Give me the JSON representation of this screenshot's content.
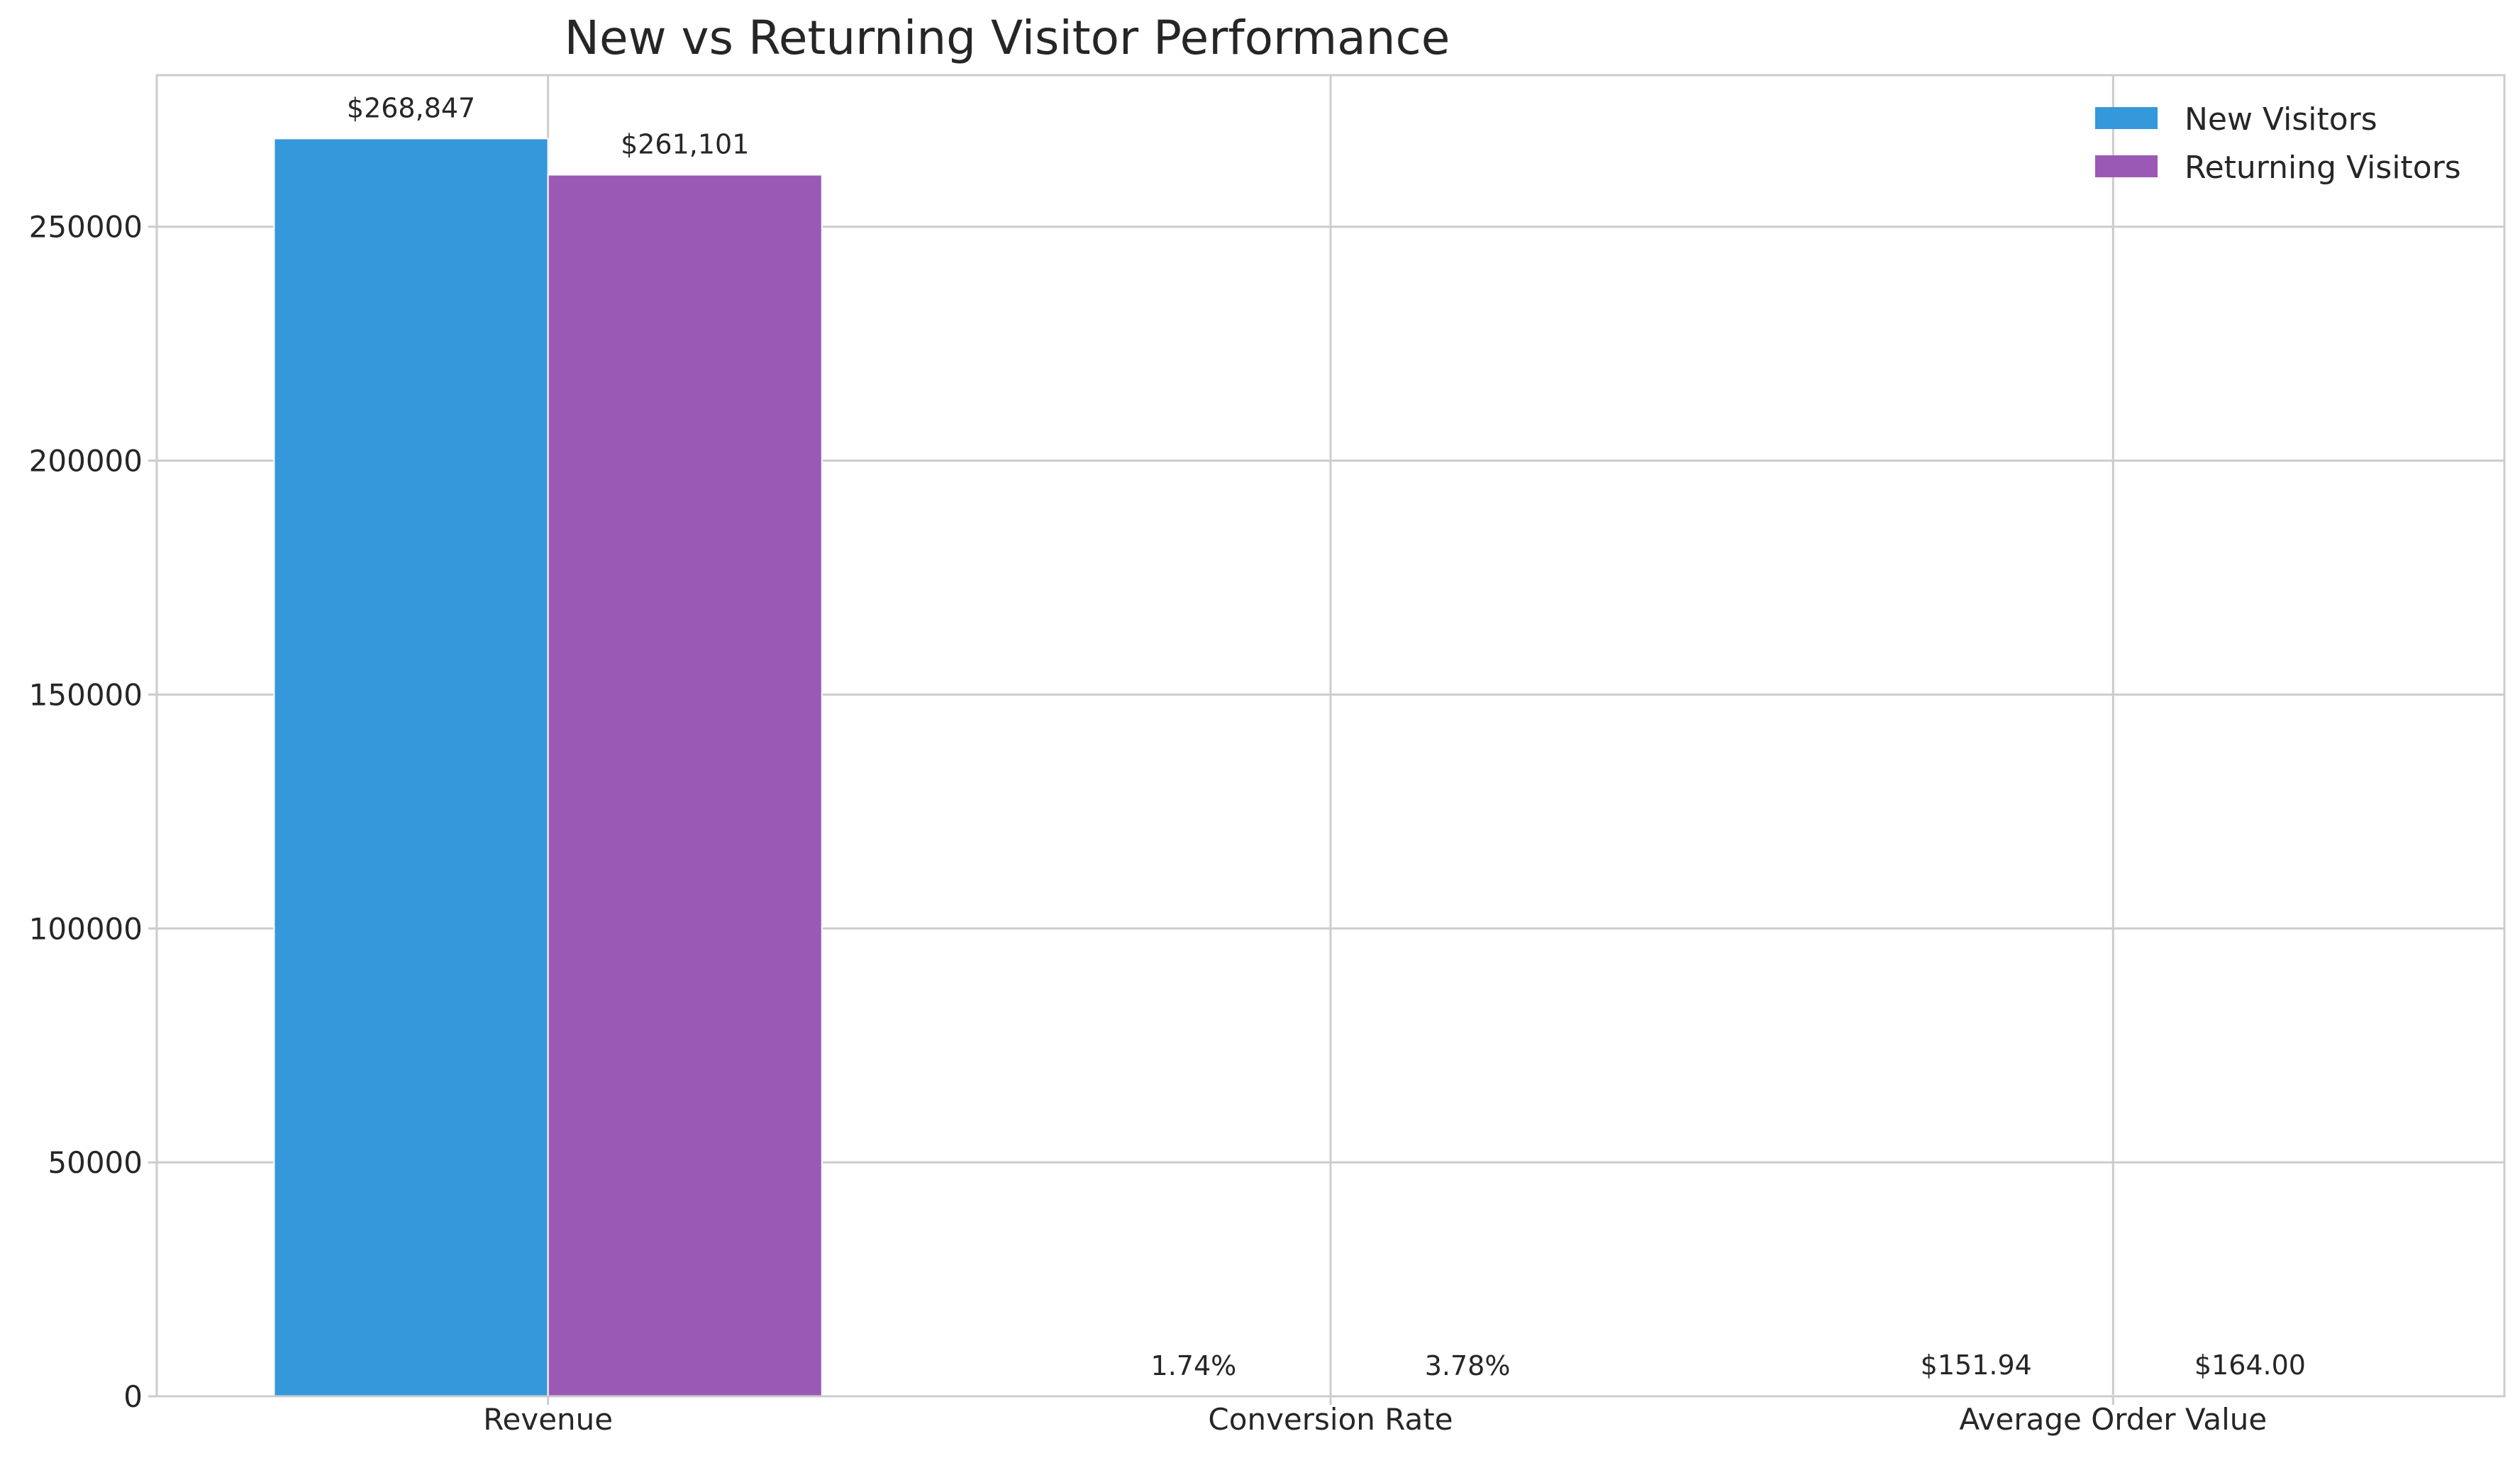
{
  "chart_data": {
    "type": "bar",
    "title": "New vs Returning Visitor Performance",
    "xlabel": "",
    "ylabel": "",
    "categories": [
      "Revenue",
      "Conversion Rate",
      "Average Order Value"
    ],
    "series": [
      {
        "name": "New Visitors",
        "color": "#3498db",
        "values": [
          268847,
          1.74,
          151.94
        ],
        "labels": [
          "$268,847",
          "1.74%",
          "$151.94"
        ]
      },
      {
        "name": "Returning Visitors",
        "color": "#9b59b6",
        "values": [
          261101,
          3.78,
          164.0
        ],
        "labels": [
          "$261,101",
          "3.78%",
          "$164.00"
        ]
      }
    ],
    "ylim": [
      0,
      282399
    ],
    "yticks": [
      0,
      50000,
      100000,
      150000,
      200000,
      250000
    ],
    "ytick_labels": [
      "0",
      "50000",
      "100000",
      "150000",
      "200000",
      "250000"
    ],
    "grid": true,
    "legend_position": "top-right"
  }
}
